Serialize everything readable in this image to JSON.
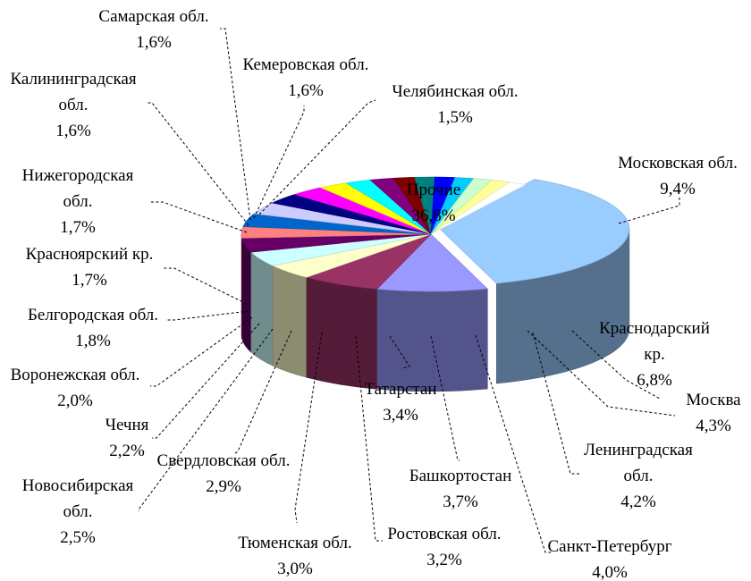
{
  "chart_data": {
    "type": "pie",
    "title": "",
    "variant": "3d-exploded-pie",
    "legend": "none",
    "slices": [
      {
        "label": "Прочие",
        "label_lines": [
          "Прочие"
        ],
        "value": 36.8,
        "value_text": "36,8%",
        "color": "#99CCFF"
      },
      {
        "label": "Московская обл.",
        "label_lines": [
          "Московская обл."
        ],
        "value": 9.4,
        "value_text": "9,4%",
        "color": "#9999FF"
      },
      {
        "label": "Краснодарский кр.",
        "label_lines": [
          "Краснодарский",
          "кр."
        ],
        "value": 6.8,
        "value_text": "6,8%",
        "color": "#993366"
      },
      {
        "label": "Москва",
        "label_lines": [
          "Москва"
        ],
        "value": 4.3,
        "value_text": "4,3%",
        "color": "#FFFFCC"
      },
      {
        "label": "Ленинградская обл.",
        "label_lines": [
          "Ленинградская",
          "обл."
        ],
        "value": 4.2,
        "value_text": "4,2%",
        "color": "#CCFFFF"
      },
      {
        "label": "Санкт-Петербург",
        "label_lines": [
          "Санкт-Петербург"
        ],
        "value": 4.0,
        "value_text": "4,0%",
        "color": "#660066"
      },
      {
        "label": "Ростовская обл.",
        "label_lines": [
          "Ростовская обл."
        ],
        "value": 3.2,
        "value_text": "3,2%",
        "color": "#FF8080"
      },
      {
        "label": "Башкортостан",
        "label_lines": [
          "Башкортостан"
        ],
        "value": 3.7,
        "value_text": "3,7%",
        "color": "#0066CC"
      },
      {
        "label": "Татарстан",
        "label_lines": [
          "Татарстан"
        ],
        "value": 3.4,
        "value_text": "3,4%",
        "color": "#CCCCFF"
      },
      {
        "label": "Тюменская обл.",
        "label_lines": [
          "Тюменская обл."
        ],
        "value": 3.0,
        "value_text": "3,0%",
        "color": "#000080"
      },
      {
        "label": "Свердловская обл.",
        "label_lines": [
          "Свердловская обл."
        ],
        "value": 2.9,
        "value_text": "2,9%",
        "color": "#FF00FF"
      },
      {
        "label": "Новосибирская обл.",
        "label_lines": [
          "Новосибирская",
          "обл."
        ],
        "value": 2.5,
        "value_text": "2,5%",
        "color": "#FFFF00"
      },
      {
        "label": "Чечня",
        "label_lines": [
          "Чечня"
        ],
        "value": 2.2,
        "value_text": "2,2%",
        "color": "#00FFFF"
      },
      {
        "label": "Воронежская обл.",
        "label_lines": [
          "Воронежская обл."
        ],
        "value": 2.0,
        "value_text": "2,0%",
        "color": "#800080"
      },
      {
        "label": "Белгородская обл.",
        "label_lines": [
          "Белгородская обл."
        ],
        "value": 1.8,
        "value_text": "1,8%",
        "color": "#800000"
      },
      {
        "label": "Красноярский кр.",
        "label_lines": [
          "Красноярский кр."
        ],
        "value": 1.7,
        "value_text": "1,7%",
        "color": "#008080"
      },
      {
        "label": "Нижегородская обл.",
        "label_lines": [
          "Нижегородская",
          "обл."
        ],
        "value": 1.7,
        "value_text": "1,7%",
        "color": "#0000FF"
      },
      {
        "label": "Калининградская обл.",
        "label_lines": [
          "Калининградская",
          "обл."
        ],
        "value": 1.6,
        "value_text": "1,6%",
        "color": "#00CCFF"
      },
      {
        "label": "Кемеровская обл.",
        "label_lines": [
          "Кемеровская обл."
        ],
        "value": 1.6,
        "value_text": "1,6%",
        "color": "#CCFFCC"
      },
      {
        "label": "Самарская обл.",
        "label_lines": [
          "Самарская обл."
        ],
        "value": 1.6,
        "value_text": "1,6%",
        "color": "#FFFF99"
      },
      {
        "label": "Челябинская обл.",
        "label_lines": [
          "Челябинская обл."
        ],
        "value": 1.5,
        "value_text": "1,5%",
        "color": "#FFFFFF"
      }
    ]
  }
}
